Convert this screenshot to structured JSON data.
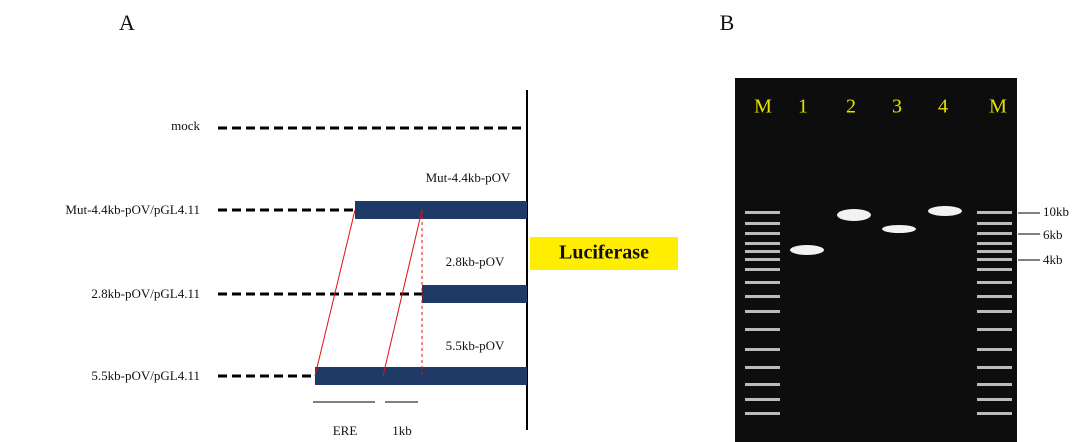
{
  "panels": {
    "a": "A",
    "b": "B"
  },
  "constructs": [
    {
      "label": "mock"
    },
    {
      "label": "Mut-4.4kb-pOV/pGL4.11",
      "fragment": "Mut-4.4kb-pOV"
    },
    {
      "label": "2.8kb-pOV/pGL4.11",
      "fragment": "2.8kb-pOV"
    },
    {
      "label": "5.5kb-pOV/pGL4.11",
      "fragment": "5.5kb-pOV"
    }
  ],
  "reporter": "Luciferase",
  "scale": {
    "ere": "ERE",
    "kb": "1kb"
  },
  "gel": {
    "lanes": [
      "M",
      "1",
      "2",
      "3",
      "4",
      "M"
    ],
    "markers": [
      "10kb",
      "6kb",
      "4kb"
    ]
  }
}
